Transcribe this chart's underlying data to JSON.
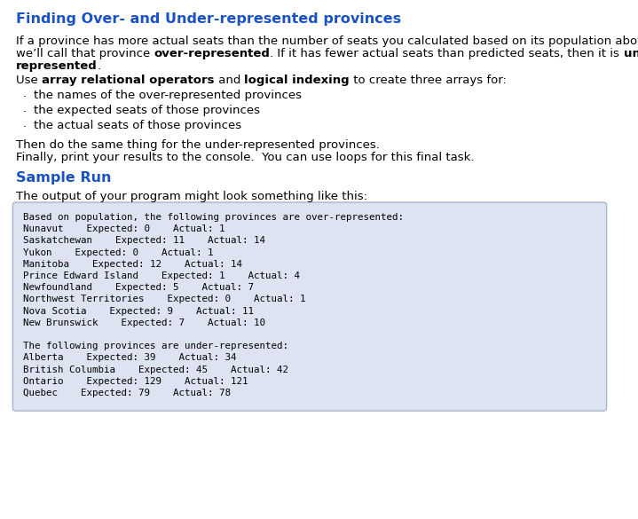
{
  "title": "Finding Over- and Under-represented provinces",
  "title_color": "#1a52c4",
  "title_fontsize": 11.5,
  "body_fontsize": 9.5,
  "console_fontsize": 7.8,
  "sample_fontsize": 11.5,
  "bullets": [
    "the names of the over-represented provinces",
    "the expected seats of those provinces",
    "the actual seats of those provinces"
  ],
  "then_line": "Then do the same thing for the under-represented provinces.",
  "finally_line": "Finally, print your results to the console.  You can use loops for this final task.",
  "sample_run_label": "Sample Run",
  "sample_run_color": "#1a52c4",
  "output_intro": "The output of your program might look something like this:",
  "console_lines": [
    "Based on population, the following provinces are over-represented:",
    "Nunavut    Expected: 0    Actual: 1",
    "Saskatchewan    Expected: 11    Actual: 14",
    "Yukon    Expected: 0    Actual: 1",
    "Manitoba    Expected: 12    Actual: 14",
    "Prince Edward Island    Expected: 1    Actual: 4",
    "Newfoundland    Expected: 5    Actual: 7",
    "Northwest Territories    Expected: 0    Actual: 1",
    "Nova Scotia    Expected: 9    Actual: 11",
    "New Brunswick    Expected: 7    Actual: 10",
    "",
    "The following provinces are under-represented:",
    "Alberta    Expected: 39    Actual: 34",
    "British Columbia    Expected: 45    Actual: 42",
    "Ontario    Expected: 129    Actual: 121",
    "Quebec    Expected: 79    Actual: 78"
  ],
  "console_bg": "#dde3f0",
  "console_border": "#aab4cc",
  "bg_color": "#ffffff",
  "para1_line1": "If a province has more actual seats than the number of seats you calculated based on its population above,",
  "para1_line2_normal1": "we’ll call that province ",
  "para1_line2_bold1": "over-represented",
  "para1_line2_normal2": ". If it has fewer actual seats than predicted seats, then it is ",
  "para1_line2_bold2": "under-",
  "para1_line3_bold": "represented",
  "para1_line3_normal": ".",
  "use_normal1": "Use ",
  "use_bold1": "array relational operators",
  "use_normal2": " and ",
  "use_bold2": "logical indexing",
  "use_normal3": " to create three arrays for:"
}
